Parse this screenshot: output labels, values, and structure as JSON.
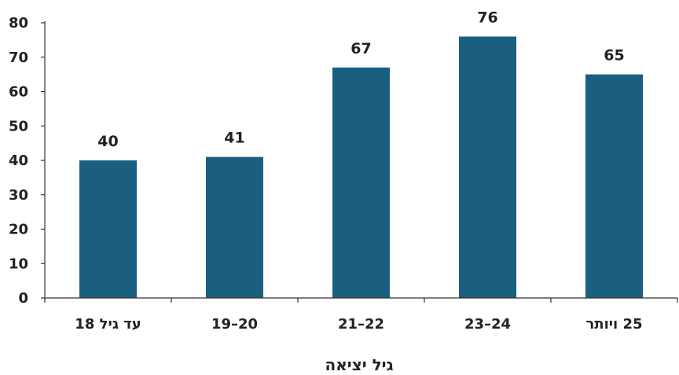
{
  "chart_data": {
    "type": "bar",
    "categories": [
      "עד גיל 18",
      "20–19",
      "22–21",
      "24–23",
      "25 ויותר"
    ],
    "values": [
      40,
      41,
      67,
      76,
      65
    ],
    "data_labels": [
      "40",
      "41",
      "67",
      "76",
      "65"
    ],
    "xlabel": "גיל יציאה",
    "ylabel": "",
    "ylim": [
      0,
      80
    ],
    "yticks": [
      0,
      10,
      20,
      30,
      40,
      50,
      60,
      70,
      80
    ],
    "ytick_labels": [
      "0",
      "10",
      "20",
      "30",
      "40",
      "50",
      "60",
      "70",
      "80"
    ],
    "grid": false,
    "legend": "none",
    "bar_color": "#1a5f80",
    "axis_color": "#333333"
  }
}
